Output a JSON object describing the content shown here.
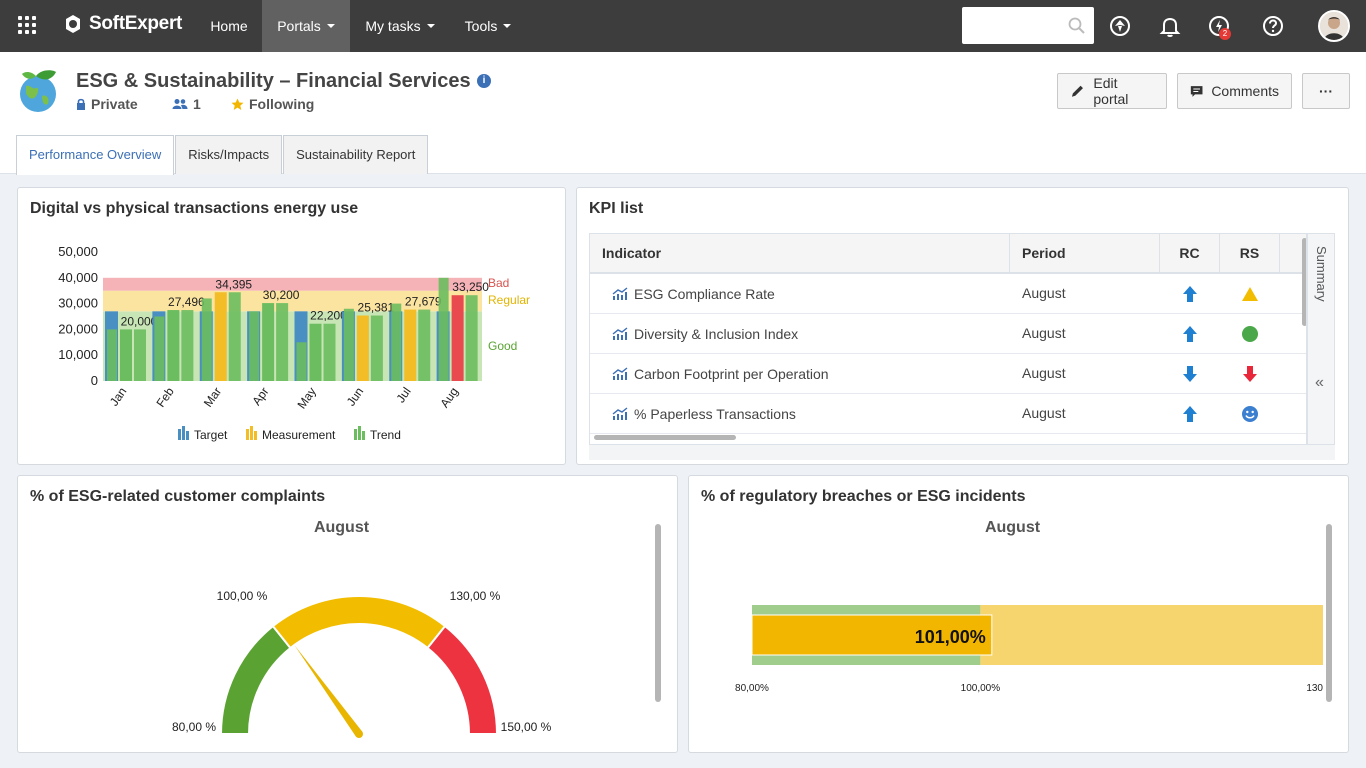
{
  "nav": {
    "brand": "SoftExpert",
    "items": [
      {
        "label": "Home",
        "dropdown": false,
        "active": false
      },
      {
        "label": "Portals",
        "dropdown": true,
        "active": true
      },
      {
        "label": "My tasks",
        "dropdown": true,
        "active": false
      },
      {
        "label": "Tools",
        "dropdown": true,
        "active": false
      }
    ],
    "search_placeholder": "",
    "notification_badge": "2"
  },
  "portal": {
    "title": "ESG & Sustainability – Financial Services",
    "visibility": "Private",
    "members": "1",
    "follow": "Following",
    "edit_label": "Edit portal",
    "comments_label": "Comments",
    "more_label": "···"
  },
  "tabs": [
    {
      "label": "Performance Overview",
      "active": true
    },
    {
      "label": "Risks/Impacts",
      "active": false
    },
    {
      "label": "Sustainability Report",
      "active": false
    }
  ],
  "energy_panel": {
    "title": "Digital vs physical transactions energy use"
  },
  "kpi_panel": {
    "title": "KPI list",
    "headers": [
      "Indicator",
      "Period",
      "RC",
      "RS"
    ],
    "rows": [
      {
        "indicator": "ESG Compliance Rate",
        "period": "August",
        "rc": "up",
        "rs": "triangle-warning"
      },
      {
        "indicator": "Diversity & Inclusion Index",
        "period": "August",
        "rc": "up",
        "rs": "circle-good"
      },
      {
        "indicator": "Carbon Footprint per Operation",
        "period": "August",
        "rc": "down",
        "rs": "arrow-down-bad"
      },
      {
        "indicator": "% Paperless Transactions",
        "period": "August",
        "rc": "up",
        "rs": "smiley"
      }
    ],
    "summary_label": "Summary",
    "collapse_label": "«"
  },
  "complaints_panel": {
    "title": "% of ESG-related customer complaints",
    "period": "August"
  },
  "breaches_panel": {
    "title": "% of regulatory breaches or ESG incidents",
    "period": "August"
  },
  "chart_data": [
    {
      "type": "bar",
      "title": "Digital vs physical transactions energy use",
      "categories": [
        "Jan",
        "Feb",
        "Mar",
        "Apr",
        "May",
        "Jun",
        "Jul",
        "Aug"
      ],
      "yticks": [
        "0",
        "10,000",
        "20,000",
        "30,000",
        "40,000",
        "50,000"
      ],
      "ylim": [
        0,
        50000
      ],
      "bands": [
        {
          "label": "Good",
          "from": 0,
          "to": 27000,
          "color": "#c8e6b5",
          "text_color": "#5aa332"
        },
        {
          "label": "Regular",
          "from": 27000,
          "to": 35000,
          "color": "#fbe3a0",
          "text_color": "#e0b400"
        },
        {
          "label": "Bad",
          "from": 35000,
          "to": 40000,
          "color": "#f5b3b8",
          "text_color": "#d9534f"
        }
      ],
      "series": [
        {
          "name": "Target",
          "color": "#4a8fc1",
          "values": [
            27000,
            27000,
            27000,
            27000,
            27000,
            27000,
            27000,
            27000
          ]
        },
        {
          "name": "Measurement",
          "color": "#f2bd27",
          "values": [
            20000,
            27496,
            34395,
            30200,
            22200,
            25381,
            27679,
            33250
          ]
        },
        {
          "name": "Trend",
          "color": "#6cbd5f",
          "values": [
            [
              20000,
              20000
            ],
            [
              25000,
              27496
            ],
            [
              32000,
              34395
            ],
            [
              27000,
              30200
            ],
            [
              15000,
              22200
            ],
            [
              28000,
              25381
            ],
            [
              30000,
              27679
            ],
            [
              40000,
              33250
            ]
          ]
        }
      ],
      "measurement_colors": [
        "#6cbd5f",
        "#6cbd5f",
        "#f2bd27",
        "#6cbd5f",
        "#6cbd5f",
        "#f2bd27",
        "#f2bd27",
        "#e84a4f"
      ],
      "data_labels": [
        "20,000",
        "27,496",
        "34,395",
        "30,200",
        "22,200",
        "25,381",
        "27,679",
        "33,250"
      ]
    },
    {
      "type": "gauge",
      "title": "% of ESG-related customer complaints",
      "subtitle": "August",
      "range": [
        80,
        150
      ],
      "bands": [
        {
          "from": 80,
          "to": 100,
          "color": "#5aa332"
        },
        {
          "from": 100,
          "to": 130,
          "color": "#f2bd00"
        },
        {
          "from": 130,
          "to": 150,
          "color": "#ee3340"
        }
      ],
      "tick_labels": [
        "80,00 %",
        "100,00 %",
        "130,00 %",
        "150,00 %"
      ],
      "value": 101
    },
    {
      "type": "bullet",
      "title": "% of regulatory breaches or ESG incidents",
      "subtitle": "August",
      "range": [
        80,
        130
      ],
      "bands": [
        {
          "from": 80,
          "to": 100,
          "color": "#a0cc8c"
        },
        {
          "from": 100,
          "to": 130,
          "color": "#f7d56e"
        }
      ],
      "value": 101,
      "value_label": "101,00%",
      "axis_labels": [
        "80,00%",
        "100,00%",
        "130"
      ]
    }
  ]
}
